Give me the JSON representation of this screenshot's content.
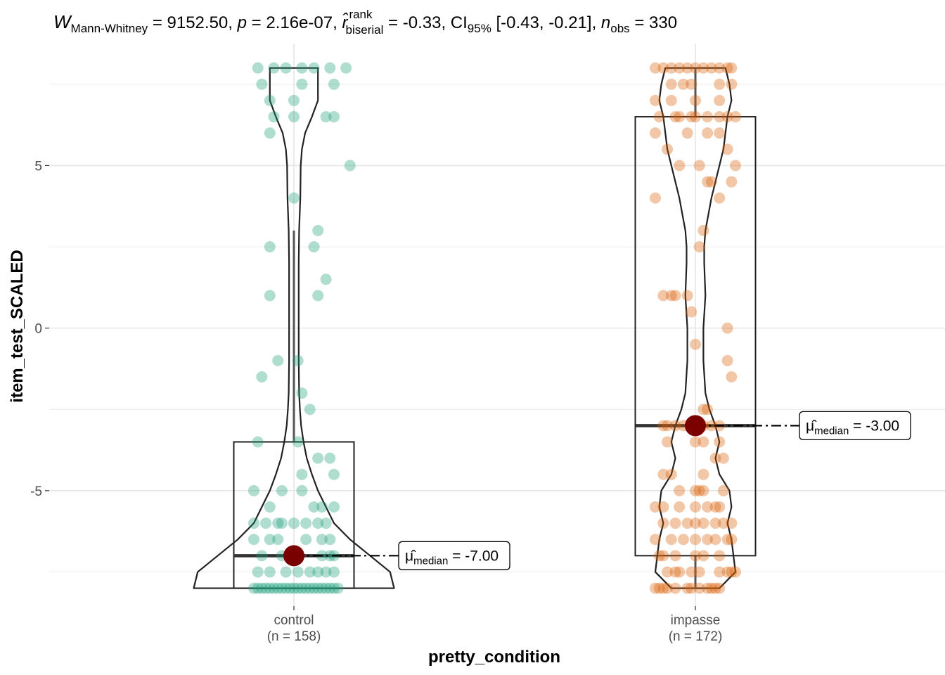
{
  "chart_data": {
    "type": "violin-box-scatter",
    "title": {
      "W_sub": "Mann-Whitney",
      "W_value": "9152.50",
      "p_value": "2.16e-07",
      "r_sup": "rank",
      "r_sub": "biserial",
      "r_value": "-0.33",
      "ci_sub": "95%",
      "ci_value": "[-0.43, -0.21]",
      "n_sub": "obs",
      "n_value": "330"
    },
    "xlabel": "pretty_condition",
    "ylabel": "item_test_SCALED",
    "ylim": [
      -8.55,
      8.75
    ],
    "yticks": [
      {
        "value": 5,
        "label": "5"
      },
      {
        "value": 0,
        "label": "0"
      },
      {
        "value": -5,
        "label": "-5"
      }
    ],
    "groups": [
      {
        "name": "control",
        "n_label": "(n = 158)",
        "color": "#1b9e77",
        "box": {
          "q1": -8.0,
          "median": -7.0,
          "q3": -3.5,
          "whisker_low": -8.0,
          "whisker_high": 3.0
        },
        "median_label_prefix": "μ",
        "median_label_sub": "median",
        "median_label_value": "= -7.00",
        "median": -7.0,
        "points": [
          [
            -0.05,
            8
          ],
          [
            -0.02,
            8
          ],
          [
            0.02,
            8
          ],
          [
            0.05,
            8
          ],
          [
            -0.09,
            8
          ],
          [
            0.09,
            8
          ],
          [
            0.13,
            8
          ],
          [
            -0.08,
            7.5
          ],
          [
            0.1,
            7.5
          ],
          [
            0.02,
            7.5
          ],
          [
            -0.06,
            7
          ],
          [
            0.0,
            7
          ],
          [
            0.1,
            6.5
          ],
          [
            0.08,
            6.5
          ],
          [
            -0.06,
            6
          ],
          [
            -0.05,
            6.5
          ],
          [
            0.0,
            6.5
          ],
          [
            0.14,
            5
          ],
          [
            0.0,
            4
          ],
          [
            0.06,
            3
          ],
          [
            -0.06,
            2.5
          ],
          [
            0.05,
            2.5
          ],
          [
            -0.06,
            1
          ],
          [
            0.06,
            1
          ],
          [
            0.08,
            1.5
          ],
          [
            -0.04,
            -1
          ],
          [
            0.01,
            -1
          ],
          [
            -0.08,
            -1.5
          ],
          [
            0.02,
            -2
          ],
          [
            0.04,
            -2.5
          ],
          [
            -0.09,
            -3.5
          ],
          [
            0.01,
            -3.5
          ],
          [
            0.06,
            -4
          ],
          [
            0.09,
            -4
          ],
          [
            0.02,
            -4.5
          ],
          [
            0.1,
            -4.5
          ],
          [
            -0.1,
            -5
          ],
          [
            -0.03,
            -5
          ],
          [
            0.02,
            -5
          ],
          [
            -0.06,
            -5.5
          ],
          [
            0.05,
            -5.5
          ],
          [
            0.07,
            -5.5
          ],
          [
            0.1,
            -5.5
          ],
          [
            -0.1,
            -6
          ],
          [
            -0.07,
            -6
          ],
          [
            -0.04,
            -6
          ],
          [
            -0.03,
            -6
          ],
          [
            0.0,
            -6
          ],
          [
            0.03,
            -6
          ],
          [
            0.06,
            -6
          ],
          [
            0.08,
            -6
          ],
          [
            -0.1,
            -6.5
          ],
          [
            -0.06,
            -6.5
          ],
          [
            -0.04,
            -6.5
          ],
          [
            0.03,
            -6.5
          ],
          [
            0.07,
            -6.5
          ],
          [
            0.09,
            -6.5
          ],
          [
            -0.08,
            -7
          ],
          [
            -0.03,
            -7
          ],
          [
            0.0,
            -7
          ],
          [
            0.07,
            -7
          ],
          [
            0.09,
            -7
          ],
          [
            0.1,
            -7
          ],
          [
            -0.09,
            -7.5
          ],
          [
            -0.06,
            -7.5
          ],
          [
            -0.02,
            -7.5
          ],
          [
            0.01,
            -7.5
          ],
          [
            0.04,
            -7.5
          ],
          [
            0.06,
            -7.5
          ],
          [
            0.08,
            -7.5
          ],
          [
            0.1,
            -7.5
          ],
          [
            -0.1,
            -8
          ],
          [
            -0.09,
            -8
          ],
          [
            -0.08,
            -8
          ],
          [
            -0.07,
            -8
          ],
          [
            -0.06,
            -8
          ],
          [
            -0.05,
            -8
          ],
          [
            -0.04,
            -8
          ],
          [
            -0.03,
            -8
          ],
          [
            -0.02,
            -8
          ],
          [
            -0.01,
            -8
          ],
          [
            0.0,
            -8
          ],
          [
            0.01,
            -8
          ],
          [
            0.02,
            -8
          ],
          [
            0.03,
            -8
          ],
          [
            0.04,
            -8
          ],
          [
            0.05,
            -8
          ],
          [
            0.06,
            -8
          ],
          [
            0.07,
            -8
          ],
          [
            0.08,
            -8
          ],
          [
            0.09,
            -8
          ],
          [
            0.1,
            -8
          ],
          [
            0.11,
            -8
          ]
        ],
        "violin": [
          [
            -8.0,
            0.25
          ],
          [
            -7.5,
            0.24
          ],
          [
            -7.0,
            0.19
          ],
          [
            -6.5,
            0.14
          ],
          [
            -6.0,
            0.1
          ],
          [
            -5.5,
            0.08
          ],
          [
            -5.0,
            0.06
          ],
          [
            -4.5,
            0.045
          ],
          [
            -4.0,
            0.032
          ],
          [
            -3.5,
            0.024
          ],
          [
            -3.0,
            0.018
          ],
          [
            -2.5,
            0.015
          ],
          [
            -2.0,
            0.013
          ],
          [
            -1.0,
            0.012
          ],
          [
            0.0,
            0.012
          ],
          [
            1.0,
            0.012
          ],
          [
            2.0,
            0.012
          ],
          [
            3.0,
            0.013
          ],
          [
            4.0,
            0.016
          ],
          [
            5.0,
            0.017
          ],
          [
            5.5,
            0.02
          ],
          [
            6.0,
            0.028
          ],
          [
            6.5,
            0.045
          ],
          [
            7.0,
            0.06
          ],
          [
            7.5,
            0.06
          ],
          [
            8.0,
            0.06
          ]
        ]
      },
      {
        "name": "impasse",
        "n_label": "(n = 172)",
        "color": "#d95f02",
        "box": {
          "q1": -7.0,
          "median": -3.0,
          "q3": 6.5,
          "whisker_low": -8.0,
          "whisker_high": 8.0
        },
        "median_label_prefix": "μ",
        "median_label_sub": "median",
        "median_label_value": "= -3.00",
        "median": -3.0,
        "points": [
          [
            -0.1,
            8
          ],
          [
            -0.08,
            8
          ],
          [
            -0.06,
            8
          ],
          [
            -0.04,
            8
          ],
          [
            -0.02,
            8
          ],
          [
            0.0,
            8
          ],
          [
            0.02,
            8
          ],
          [
            0.04,
            8
          ],
          [
            0.06,
            8
          ],
          [
            0.08,
            8
          ],
          [
            0.09,
            8
          ],
          [
            -0.06,
            7.5
          ],
          [
            -0.03,
            7.5
          ],
          [
            -0.01,
            7.5
          ],
          [
            0.06,
            7.5
          ],
          [
            0.09,
            7.5
          ],
          [
            -0.1,
            7
          ],
          [
            -0.06,
            7
          ],
          [
            0.0,
            7
          ],
          [
            0.06,
            7
          ],
          [
            -0.09,
            6.5
          ],
          [
            -0.05,
            6.5
          ],
          [
            -0.04,
            6.5
          ],
          [
            -0.01,
            6.5
          ],
          [
            0.0,
            6.5
          ],
          [
            0.03,
            6.5
          ],
          [
            0.06,
            6.5
          ],
          [
            0.08,
            6.5
          ],
          [
            0.1,
            6.5
          ],
          [
            -0.1,
            6
          ],
          [
            -0.02,
            6
          ],
          [
            0.03,
            6
          ],
          [
            0.06,
            6
          ],
          [
            -0.07,
            5.5
          ],
          [
            0.08,
            5.5
          ],
          [
            -0.04,
            5
          ],
          [
            0.01,
            5
          ],
          [
            0.1,
            5
          ],
          [
            0.03,
            4.5
          ],
          [
            0.04,
            4.5
          ],
          [
            0.09,
            4.5
          ],
          [
            -0.1,
            4
          ],
          [
            0.06,
            4
          ],
          [
            0.02,
            3
          ],
          [
            0.01,
            2.5
          ],
          [
            -0.08,
            1
          ],
          [
            -0.06,
            1
          ],
          [
            -0.05,
            1
          ],
          [
            -0.02,
            1
          ],
          [
            -0.01,
            0.5
          ],
          [
            0.08,
            0
          ],
          [
            0.0,
            -0.5
          ],
          [
            0.08,
            -1
          ],
          [
            0.09,
            -1.5
          ],
          [
            0.03,
            -2.5
          ],
          [
            0.02,
            -2.5
          ],
          [
            -0.08,
            -3
          ],
          [
            -0.07,
            -3
          ],
          [
            -0.05,
            -3
          ],
          [
            -0.03,
            -3
          ],
          [
            0.0,
            -3
          ],
          [
            0.02,
            -3
          ],
          [
            0.04,
            -3
          ],
          [
            0.06,
            -3
          ],
          [
            -0.07,
            -3.5
          ],
          [
            0.0,
            -3.5
          ],
          [
            0.02,
            -3.5
          ],
          [
            0.06,
            -3.5
          ],
          [
            0.05,
            -4
          ],
          [
            0.07,
            -4
          ],
          [
            -0.08,
            -4.5
          ],
          [
            -0.06,
            -4.5
          ],
          [
            0.02,
            -4.5
          ],
          [
            -0.04,
            -5
          ],
          [
            0.0,
            -5
          ],
          [
            0.01,
            -5
          ],
          [
            0.02,
            -5
          ],
          [
            0.07,
            -5
          ],
          [
            -0.1,
            -5.5
          ],
          [
            -0.08,
            -5.5
          ],
          [
            -0.04,
            -5.5
          ],
          [
            0.0,
            -5.5
          ],
          [
            0.03,
            -5.5
          ],
          [
            0.05,
            -5.5
          ],
          [
            0.06,
            -5.5
          ],
          [
            -0.08,
            -6
          ],
          [
            -0.05,
            -6
          ],
          [
            -0.02,
            -6
          ],
          [
            0.0,
            -6
          ],
          [
            0.02,
            -6
          ],
          [
            0.05,
            -6
          ],
          [
            0.07,
            -6
          ],
          [
            0.09,
            -6
          ],
          [
            -0.1,
            -6.5
          ],
          [
            -0.06,
            -6.5
          ],
          [
            -0.03,
            -6.5
          ],
          [
            0.0,
            -6.5
          ],
          [
            0.03,
            -6.5
          ],
          [
            0.05,
            -6.5
          ],
          [
            0.08,
            -6.5
          ],
          [
            0.09,
            -6.5
          ],
          [
            -0.09,
            -7
          ],
          [
            -0.08,
            -7
          ],
          [
            -0.05,
            -7
          ],
          [
            0.0,
            -7
          ],
          [
            0.02,
            -7
          ],
          [
            0.06,
            -7
          ],
          [
            -0.07,
            -7.5
          ],
          [
            -0.05,
            -7.5
          ],
          [
            -0.04,
            -7.5
          ],
          [
            -0.01,
            -7.5
          ],
          [
            0.01,
            -7.5
          ],
          [
            0.06,
            -7.5
          ],
          [
            0.08,
            -7.5
          ],
          [
            0.09,
            -7.5
          ],
          [
            0.1,
            -7.5
          ],
          [
            -0.1,
            -8
          ],
          [
            -0.09,
            -8
          ],
          [
            -0.08,
            -8
          ],
          [
            -0.07,
            -8
          ],
          [
            -0.05,
            -8
          ],
          [
            -0.02,
            -8
          ],
          [
            -0.01,
            -8
          ],
          [
            0.01,
            -8
          ],
          [
            0.03,
            -8
          ],
          [
            0.04,
            -8
          ],
          [
            0.05,
            -8
          ],
          [
            0.06,
            -8
          ]
        ],
        "violin": [
          [
            -8.0,
            0.06
          ],
          [
            -7.5,
            0.1
          ],
          [
            -7.0,
            0.095
          ],
          [
            -6.5,
            0.09
          ],
          [
            -6.0,
            0.08
          ],
          [
            -5.5,
            0.09
          ],
          [
            -5.0,
            0.085
          ],
          [
            -4.5,
            0.06
          ],
          [
            -4.0,
            0.05
          ],
          [
            -3.5,
            0.06
          ],
          [
            -3.0,
            0.05
          ],
          [
            -2.5,
            0.035
          ],
          [
            -2.0,
            0.025
          ],
          [
            -1.0,
            0.02
          ],
          [
            0.0,
            0.02
          ],
          [
            1.0,
            0.025
          ],
          [
            2.0,
            0.022
          ],
          [
            2.5,
            0.022
          ],
          [
            3.0,
            0.025
          ],
          [
            4.0,
            0.04
          ],
          [
            5.0,
            0.06
          ],
          [
            5.5,
            0.07
          ],
          [
            6.0,
            0.075
          ],
          [
            6.5,
            0.08
          ],
          [
            7.0,
            0.09
          ],
          [
            7.5,
            0.085
          ],
          [
            8.0,
            0.075
          ]
        ]
      }
    ]
  }
}
